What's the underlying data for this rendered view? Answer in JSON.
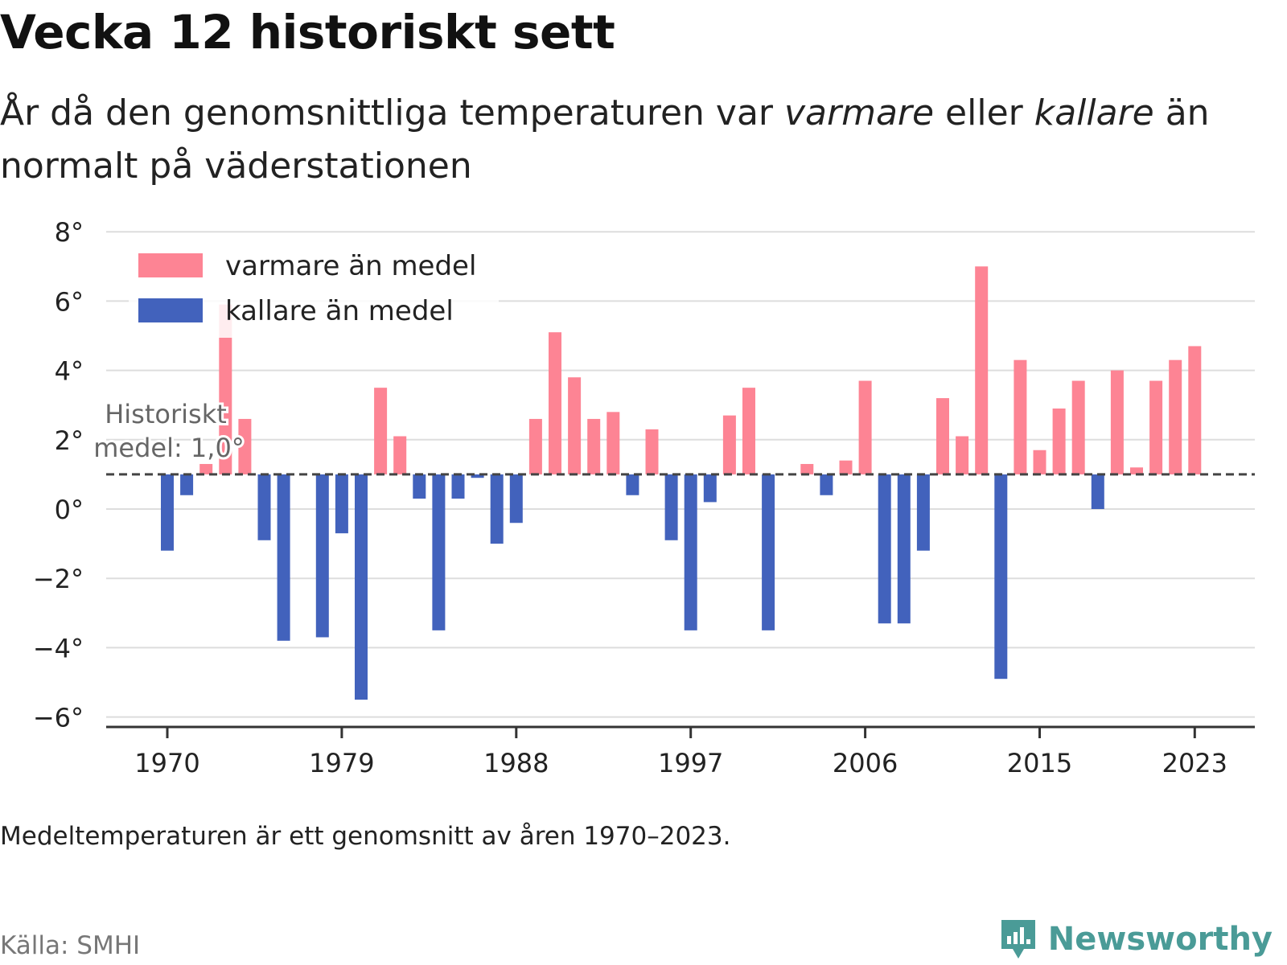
{
  "header": {
    "title": "Vecka 12 historiskt sett",
    "subtitle_part1": "År då den genomsnittliga temperaturen var ",
    "subtitle_warm": "varmare",
    "subtitle_part2": " eller ",
    "subtitle_cold": "kallare",
    "subtitle_part3": " än normalt på väderstationen"
  },
  "footer": {
    "note": "Medeltemperaturen är ett genomsnitt av åren 1970–2023.",
    "source": "Källa: SMHI",
    "brand": "Newsworthy",
    "brand_icon": "newsworthy-logo-icon"
  },
  "colors": {
    "warm": "#fd8494",
    "cold": "#4262bc",
    "mean_line": "#444444",
    "grid": "#dddddd",
    "brand": "#4a9b97"
  },
  "chart_data": {
    "type": "bar",
    "x_tick_labels": [
      "1970",
      "1979",
      "1988",
      "1997",
      "2006",
      "2015",
      "2023"
    ],
    "y_tick_labels": [
      "8°",
      "6°",
      "4°",
      "2°",
      "0°",
      "−2°",
      "−4°",
      "−6°"
    ],
    "ylim": [
      -6.3,
      8
    ],
    "grid": true,
    "legend_position": "top-left",
    "legend": [
      {
        "key": "warm",
        "label": "varmare än medel"
      },
      {
        "key": "cold",
        "label": "kallare än medel"
      }
    ],
    "baseline": 1.0,
    "baseline_label_line1": "Historiskt",
    "baseline_label_line2": "medel: 1,0°",
    "years": [
      1970,
      1971,
      1972,
      1973,
      1974,
      1975,
      1976,
      1977,
      1978,
      1979,
      1980,
      1981,
      1982,
      1983,
      1984,
      1985,
      1986,
      1987,
      1988,
      1989,
      1990,
      1991,
      1992,
      1993,
      1994,
      1995,
      1996,
      1997,
      1998,
      1999,
      2000,
      2001,
      2002,
      2003,
      2004,
      2005,
      2006,
      2007,
      2008,
      2009,
      2010,
      2011,
      2012,
      2013,
      2014,
      2015,
      2016,
      2017,
      2018,
      2019,
      2020,
      2021,
      2022,
      2023
    ],
    "values": [
      -1.2,
      0.4,
      1.3,
      5.9,
      2.6,
      -0.9,
      -3.8,
      null,
      -3.7,
      -0.7,
      -5.5,
      3.5,
      2.1,
      0.3,
      -3.5,
      0.3,
      0.9,
      -1.0,
      -0.4,
      2.6,
      5.1,
      3.8,
      2.6,
      2.8,
      0.4,
      2.3,
      -0.9,
      -3.5,
      0.2,
      2.7,
      3.5,
      -3.5,
      null,
      1.3,
      0.4,
      1.4,
      3.7,
      -3.3,
      -3.3,
      -1.2,
      3.2,
      2.1,
      7.0,
      -4.9,
      4.3,
      1.7,
      2.9,
      3.7,
      0.0,
      4.0,
      1.2,
      3.7,
      4.3,
      4.7
    ]
  }
}
